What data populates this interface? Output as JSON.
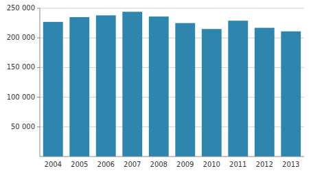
{
  "chart_data": {
    "type": "bar",
    "categories": [
      "2004",
      "2005",
      "2006",
      "2007",
      "2008",
      "2009",
      "2010",
      "2011",
      "2012",
      "2013"
    ],
    "values": [
      227000,
      235000,
      238000,
      244000,
      236000,
      225000,
      215000,
      229000,
      217000,
      211000
    ],
    "color": "#2e86ae",
    "ylim": [
      0,
      250000
    ],
    "yticks": [
      {
        "value": 50000,
        "label": "50 000"
      },
      {
        "value": 100000,
        "label": "100 000"
      },
      {
        "value": 150000,
        "label": "150 000"
      },
      {
        "value": 200000,
        "label": "200 000"
      },
      {
        "value": 250000,
        "label": "250 000"
      }
    ],
    "grid": true
  }
}
